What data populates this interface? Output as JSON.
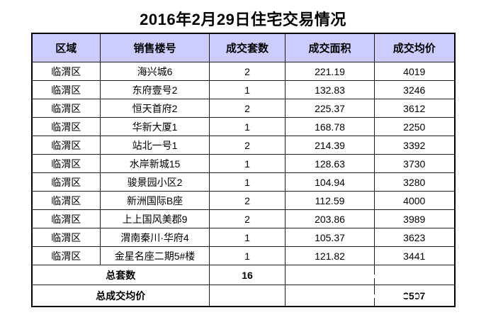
{
  "chart_data": {
    "type": "table",
    "title": "2016年2月29日住宅交易情况",
    "columns": [
      "区域",
      "销售楼号",
      "成交套数",
      "成交面积",
      "成交均价"
    ],
    "rows": [
      [
        "临渭区",
        "海兴城6",
        "2",
        "221.19",
        "4019"
      ],
      [
        "临渭区",
        "东府壹号2",
        "1",
        "132.83",
        "3246"
      ],
      [
        "临渭区",
        "恒天首府2",
        "2",
        "225.37",
        "3612"
      ],
      [
        "临渭区",
        "华新大厦1",
        "1",
        "168.78",
        "2250"
      ],
      [
        "临渭区",
        "站北一号1",
        "2",
        "214.39",
        "3392"
      ],
      [
        "临渭区",
        "水岸新城15",
        "1",
        "128.63",
        "3730"
      ],
      [
        "临渭区",
        "骏景园小区2",
        "1",
        "104.94",
        "3280"
      ],
      [
        "临渭区",
        "新洲国际B座",
        "2",
        "112.59",
        "4000"
      ],
      [
        "临渭区",
        "上上国风美郡9",
        "2",
        "203.86",
        "3989"
      ],
      [
        "临渭区",
        "渭南秦川·华府4",
        "1",
        "105.37",
        "3623"
      ],
      [
        "临渭区",
        "金星名座二期5#楼",
        "1",
        "121.82",
        "3441"
      ]
    ],
    "summary_rows": [
      {
        "label": "总套数",
        "cells": [
          "16",
          "",
          ""
        ]
      },
      {
        "label": "总成交均价",
        "cells": [
          "",
          "",
          "3507"
        ]
      }
    ],
    "layout_hints": {
      "header_bg": "#ccccff",
      "border_color": "#000000",
      "title_color": "#000000",
      "grid": "on"
    }
  }
}
